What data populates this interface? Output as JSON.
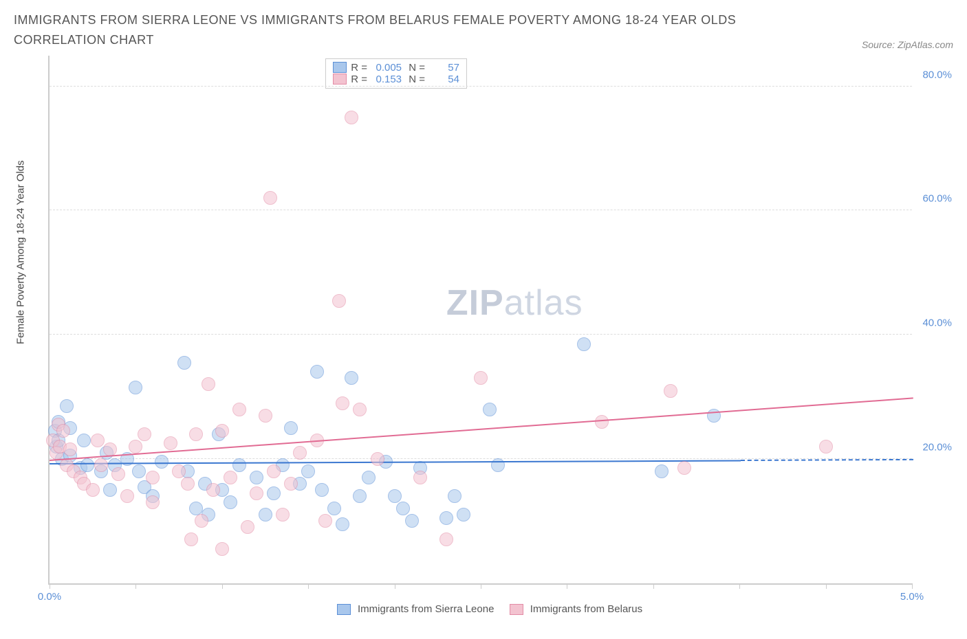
{
  "header": {
    "title": "IMMIGRANTS FROM SIERRA LEONE VS IMMIGRANTS FROM BELARUS FEMALE POVERTY AMONG 18-24 YEAR OLDS CORRELATION CHART",
    "source": "Source: ZipAtlas.com"
  },
  "chart": {
    "type": "scatter",
    "ylabel": "Female Poverty Among 18-24 Year Olds",
    "xlim": [
      0.0,
      5.0
    ],
    "ylim": [
      0.0,
      85.0
    ],
    "x_ticks": [
      0.0,
      0.5,
      1.0,
      1.5,
      2.0,
      2.5,
      3.0,
      3.5,
      4.0,
      4.5,
      5.0
    ],
    "x_tick_labels": {
      "0": "0.0%",
      "10": "5.0%"
    },
    "y_gridlines": [
      20.0,
      40.0,
      60.0,
      80.0
    ],
    "y_tick_labels": [
      "20.0%",
      "40.0%",
      "60.0%",
      "80.0%"
    ],
    "background_color": "#ffffff",
    "grid_color": "#dddddd",
    "axis_color": "#cccccc",
    "tick_label_color": "#5b8fd6",
    "marker_radius": 10,
    "marker_opacity": 0.55,
    "series": [
      {
        "name": "Immigrants from Sierra Leone",
        "fill": "#a9c7ec",
        "stroke": "#5b8fd6",
        "trend_color": "#3a77d0",
        "trend": {
          "x0": 0.0,
          "y0": 19.5,
          "x1": 4.0,
          "y1": 20.0,
          "dash_to_x": 5.0
        },
        "stats": {
          "R": "0.005",
          "N": "57"
        },
        "points": [
          [
            0.03,
            24.5
          ],
          [
            0.04,
            22.0
          ],
          [
            0.05,
            26.0
          ],
          [
            0.05,
            23.0
          ],
          [
            0.07,
            20.0
          ],
          [
            0.1,
            28.5
          ],
          [
            0.12,
            20.5
          ],
          [
            0.12,
            25.0
          ],
          [
            0.18,
            18.5
          ],
          [
            0.2,
            23.0
          ],
          [
            0.22,
            19.0
          ],
          [
            0.3,
            18.0
          ],
          [
            0.33,
            21.0
          ],
          [
            0.35,
            15.0
          ],
          [
            0.38,
            19.0
          ],
          [
            0.45,
            20.0
          ],
          [
            0.5,
            31.5
          ],
          [
            0.52,
            18.0
          ],
          [
            0.55,
            15.5
          ],
          [
            0.6,
            14.0
          ],
          [
            0.65,
            19.5
          ],
          [
            0.78,
            35.5
          ],
          [
            0.8,
            18.0
          ],
          [
            0.85,
            12.0
          ],
          [
            0.9,
            16.0
          ],
          [
            0.92,
            11.0
          ],
          [
            0.98,
            24.0
          ],
          [
            1.0,
            15.0
          ],
          [
            1.05,
            13.0
          ],
          [
            1.1,
            19.0
          ],
          [
            1.2,
            17.0
          ],
          [
            1.25,
            11.0
          ],
          [
            1.3,
            14.5
          ],
          [
            1.35,
            19.0
          ],
          [
            1.4,
            25.0
          ],
          [
            1.45,
            16.0
          ],
          [
            1.5,
            18.0
          ],
          [
            1.55,
            34.0
          ],
          [
            1.58,
            15.0
          ],
          [
            1.65,
            12.0
          ],
          [
            1.7,
            9.5
          ],
          [
            1.75,
            33.0
          ],
          [
            1.8,
            14.0
          ],
          [
            1.85,
            17.0
          ],
          [
            1.95,
            19.5
          ],
          [
            2.0,
            14.0
          ],
          [
            2.05,
            12.0
          ],
          [
            2.1,
            10.0
          ],
          [
            2.15,
            18.5
          ],
          [
            2.3,
            10.5
          ],
          [
            2.35,
            14.0
          ],
          [
            2.4,
            11.0
          ],
          [
            2.55,
            28.0
          ],
          [
            2.6,
            19.0
          ],
          [
            3.1,
            38.5
          ],
          [
            3.55,
            18.0
          ],
          [
            3.85,
            27.0
          ]
        ]
      },
      {
        "name": "Immigrants from Belarus",
        "fill": "#f3c3d0",
        "stroke": "#e38ba5",
        "trend_color": "#e16b93",
        "trend": {
          "x0": 0.0,
          "y0": 20.0,
          "x1": 5.0,
          "y1": 30.0
        },
        "stats": {
          "R": "0.153",
          "N": "54"
        },
        "points": [
          [
            0.02,
            23.0
          ],
          [
            0.04,
            21.0
          ],
          [
            0.05,
            25.5
          ],
          [
            0.06,
            22.0
          ],
          [
            0.08,
            24.5
          ],
          [
            0.1,
            19.0
          ],
          [
            0.12,
            21.5
          ],
          [
            0.14,
            18.0
          ],
          [
            0.18,
            17.0
          ],
          [
            0.2,
            16.0
          ],
          [
            0.25,
            15.0
          ],
          [
            0.28,
            23.0
          ],
          [
            0.3,
            19.0
          ],
          [
            0.35,
            21.5
          ],
          [
            0.4,
            17.5
          ],
          [
            0.45,
            14.0
          ],
          [
            0.5,
            22.0
          ],
          [
            0.55,
            24.0
          ],
          [
            0.6,
            17.0
          ],
          [
            0.6,
            13.0
          ],
          [
            0.7,
            22.5
          ],
          [
            0.75,
            18.0
          ],
          [
            0.8,
            16.0
          ],
          [
            0.82,
            7.0
          ],
          [
            0.85,
            24.0
          ],
          [
            0.88,
            10.0
          ],
          [
            0.92,
            32.0
          ],
          [
            0.95,
            15.0
          ],
          [
            1.0,
            24.5
          ],
          [
            1.0,
            5.5
          ],
          [
            1.05,
            17.0
          ],
          [
            1.1,
            28.0
          ],
          [
            1.15,
            9.0
          ],
          [
            1.2,
            14.5
          ],
          [
            1.25,
            27.0
          ],
          [
            1.28,
            62.0
          ],
          [
            1.3,
            18.0
          ],
          [
            1.35,
            11.0
          ],
          [
            1.4,
            16.0
          ],
          [
            1.45,
            21.0
          ],
          [
            1.55,
            23.0
          ],
          [
            1.6,
            10.0
          ],
          [
            1.68,
            45.5
          ],
          [
            1.7,
            29.0
          ],
          [
            1.75,
            75.0
          ],
          [
            1.8,
            28.0
          ],
          [
            1.9,
            20.0
          ],
          [
            2.15,
            17.0
          ],
          [
            2.3,
            7.0
          ],
          [
            2.5,
            33.0
          ],
          [
            3.2,
            26.0
          ],
          [
            3.6,
            31.0
          ],
          [
            3.68,
            18.5
          ],
          [
            4.5,
            22.0
          ]
        ]
      }
    ],
    "watermark": {
      "bold": "ZIP",
      "light": "atlas"
    }
  },
  "bottom_legend": [
    {
      "swatch_fill": "#a9c7ec",
      "swatch_stroke": "#5b8fd6",
      "label": "Immigrants from Sierra Leone"
    },
    {
      "swatch_fill": "#f3c3d0",
      "swatch_stroke": "#e38ba5",
      "label": "Immigrants from Belarus"
    }
  ]
}
